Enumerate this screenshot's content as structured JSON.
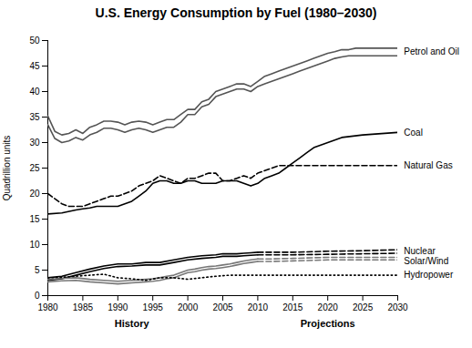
{
  "chart_data": {
    "type": "line",
    "title": "U.S. Energy Consumption by Fuel (1980–2030)",
    "ylabel": "Quadrillion units",
    "xlim": [
      1980,
      2030
    ],
    "ylim": [
      0,
      50
    ],
    "xticks": [
      1980,
      1985,
      1990,
      1995,
      2000,
      2005,
      2010,
      2015,
      2020,
      2025,
      2030
    ],
    "yticks": [
      0,
      5,
      10,
      15,
      20,
      25,
      30,
      35,
      40,
      45,
      50
    ],
    "grid": false,
    "series": [
      {
        "color": "#555555",
        "line_style": "solid",
        "x": [
          1980,
          1981,
          1982,
          1983,
          1984,
          1985,
          1986,
          1987,
          1988,
          1989,
          1990,
          1991,
          1992,
          1993,
          1994,
          1995,
          1996,
          1997,
          1998,
          1999,
          2000,
          2001,
          2002,
          2003,
          2004,
          2005,
          2006,
          2007,
          2008,
          2009,
          2010,
          2011,
          2012,
          2013,
          2014,
          2015,
          2016,
          2017,
          2018,
          2019,
          2020,
          2021,
          2022,
          2023,
          2024,
          2025,
          2026,
          2027,
          2028,
          2029,
          2030
        ],
        "values": [
          35.2,
          32.2,
          31.5,
          31.8,
          32.5,
          31.8,
          33.0,
          33.5,
          34.2,
          34.2,
          34.0,
          33.5,
          34.0,
          34.2,
          34.0,
          33.5,
          34.0,
          34.5,
          34.5,
          35.5,
          36.5,
          36.5,
          38.0,
          38.5,
          40.0,
          40.5,
          41.0,
          41.5,
          41.5,
          41.0,
          42.0,
          43.0,
          43.5,
          44.0,
          44.5,
          45.0,
          45.5,
          46.0,
          46.5,
          47.0,
          47.5,
          47.8,
          48.2,
          48.2,
          48.5,
          48.5,
          48.5,
          48.5,
          48.5,
          48.5,
          48.5
        ]
      },
      {
        "color": "#555555",
        "line_style": "solid",
        "x": [
          1980,
          1981,
          1982,
          1983,
          1984,
          1985,
          1986,
          1987,
          1988,
          1989,
          1990,
          1991,
          1992,
          1993,
          1994,
          1995,
          1996,
          1997,
          1998,
          1999,
          2000,
          2001,
          2002,
          2003,
          2004,
          2005,
          2006,
          2007,
          2008,
          2009,
          2010,
          2011,
          2012,
          2013,
          2014,
          2015,
          2016,
          2017,
          2018,
          2019,
          2020,
          2021,
          2022,
          2023,
          2024,
          2025,
          2026,
          2027,
          2028,
          2029,
          2030
        ],
        "values": [
          33.5,
          30.8,
          30.0,
          30.3,
          31.0,
          30.5,
          31.5,
          32.0,
          32.8,
          32.8,
          32.5,
          32.0,
          32.5,
          32.8,
          32.5,
          32.0,
          32.5,
          33.0,
          33.0,
          34.0,
          35.5,
          35.5,
          37.0,
          37.5,
          39.0,
          39.5,
          40.0,
          40.5,
          40.5,
          40.0,
          41.0,
          41.5,
          42.0,
          42.5,
          43.0,
          43.5,
          44.0,
          44.5,
          45.0,
          45.5,
          46.0,
          46.5,
          46.8,
          47.0,
          47.0,
          47.0,
          47.0,
          47.0,
          47.0,
          47.0,
          47.0
        ]
      },
      {
        "color": "black",
        "line_style": "solid",
        "x": [
          1980,
          1982,
          1984,
          1985,
          1986,
          1987,
          1988,
          1989,
          1990,
          1991,
          1992,
          1993,
          1994,
          1995,
          1996,
          1997,
          1998,
          1999,
          2000,
          2001,
          2002,
          2003,
          2004,
          2005,
          2006,
          2007,
          2008,
          2009,
          2010,
          2011,
          2012,
          2013,
          2014,
          2015,
          2016,
          2017,
          2018,
          2019,
          2020,
          2021,
          2022,
          2025,
          2030
        ],
        "values": [
          16.0,
          16.2,
          16.8,
          17.0,
          17.2,
          17.5,
          17.5,
          17.5,
          17.5,
          18.0,
          18.5,
          19.5,
          20.5,
          22.0,
          22.5,
          22.5,
          22.0,
          22.0,
          22.5,
          22.5,
          22.0,
          22.0,
          22.0,
          22.5,
          22.5,
          22.5,
          22.0,
          21.5,
          22.0,
          23.0,
          23.5,
          24.0,
          25.0,
          26.0,
          27.0,
          28.0,
          29.0,
          29.5,
          30.0,
          30.5,
          31.0,
          31.5,
          32.0
        ]
      },
      {
        "color": "black",
        "line_style": "dashed",
        "x": [
          1980,
          1981,
          1982,
          1983,
          1984,
          1985,
          1986,
          1987,
          1988,
          1989,
          1990,
          1991,
          1992,
          1993,
          1994,
          1995,
          1996,
          1997,
          1998,
          1999,
          2000,
          2001,
          2002,
          2003,
          2004,
          2005,
          2006,
          2007,
          2008,
          2009,
          2010,
          2011,
          2012,
          2013,
          2014,
          2015,
          2016,
          2017,
          2018,
          2019,
          2020,
          2025,
          2030
        ],
        "values": [
          20.0,
          19.0,
          18.0,
          17.5,
          17.5,
          17.5,
          18.0,
          18.5,
          19.0,
          19.5,
          19.5,
          20.0,
          20.5,
          21.5,
          22.0,
          22.5,
          23.5,
          23.0,
          22.5,
          22.0,
          23.0,
          23.0,
          23.5,
          24.0,
          24.0,
          22.5,
          22.5,
          23.0,
          23.5,
          23.0,
          24.0,
          24.5,
          25.0,
          25.5,
          25.5,
          25.5,
          25.5,
          25.5,
          25.5,
          25.5,
          25.5,
          25.5,
          25.5
        ]
      },
      {
        "color": "black",
        "line_style": "solid",
        "x": [
          1980,
          1982,
          1984,
          1986,
          1988,
          1990,
          1992,
          1994,
          1996,
          1998,
          2000,
          2002,
          2004,
          2005,
          2006,
          2007,
          2008,
          2009,
          2010
        ],
        "values": [
          3.5,
          3.8,
          4.5,
          5.2,
          5.8,
          6.2,
          6.2,
          6.5,
          6.5,
          7.0,
          7.5,
          7.8,
          8.0,
          8.2,
          8.2,
          8.2,
          8.3,
          8.4,
          8.5
        ]
      },
      {
        "color": "black",
        "line_style": "dashed",
        "x": [
          2010,
          2012,
          2015,
          2020,
          2025,
          2030
        ],
        "values": [
          8.5,
          8.5,
          8.5,
          8.7,
          8.8,
          9.0
        ]
      },
      {
        "color": "black",
        "line_style": "solid",
        "x": [
          1980,
          1982,
          1984,
          1986,
          1988,
          1990,
          1992,
          1994,
          1996,
          1998,
          2000,
          2002,
          2004,
          2005,
          2006,
          2007,
          2008,
          2009,
          2010
        ],
        "values": [
          3.0,
          3.3,
          4.0,
          4.7,
          5.3,
          5.7,
          5.8,
          6.0,
          6.0,
          6.5,
          7.0,
          7.3,
          7.5,
          7.7,
          7.7,
          7.7,
          7.8,
          7.9,
          8.0
        ]
      },
      {
        "color": "black",
        "line_style": "dashed",
        "x": [
          2010,
          2012,
          2015,
          2020,
          2025,
          2030
        ],
        "values": [
          8.0,
          8.0,
          8.0,
          8.1,
          8.2,
          8.3
        ]
      },
      {
        "color": "#777777",
        "line_style": "solid",
        "x": [
          1980,
          1982,
          1984,
          1986,
          1988,
          1990,
          1992,
          1994,
          1995,
          1996,
          1997,
          1998,
          1999,
          2000,
          2001,
          2002,
          2003,
          2004,
          2005,
          2006,
          2007,
          2008,
          2009,
          2010
        ],
        "values": [
          3.2,
          3.4,
          3.5,
          3.2,
          3.0,
          2.8,
          3.0,
          3.2,
          3.3,
          3.5,
          3.8,
          4.0,
          4.5,
          5.0,
          5.2,
          5.5,
          5.7,
          5.8,
          6.0,
          6.2,
          6.5,
          6.8,
          7.0,
          7.2
        ]
      },
      {
        "color": "#777777",
        "line_style": "dashed",
        "x": [
          2010,
          2012,
          2015,
          2020,
          2025,
          2030
        ],
        "values": [
          7.2,
          7.2,
          7.3,
          7.5,
          7.5,
          7.5
        ]
      },
      {
        "color": "#777777",
        "line_style": "solid",
        "x": [
          1980,
          1982,
          1984,
          1986,
          1988,
          1990,
          1992,
          1994,
          1995,
          1996,
          1997,
          1998,
          1999,
          2000,
          2001,
          2002,
          2003,
          2004,
          2005,
          2006,
          2007,
          2008,
          2009,
          2010
        ],
        "values": [
          2.7,
          2.9,
          3.0,
          2.7,
          2.5,
          2.3,
          2.5,
          2.7,
          2.8,
          3.0,
          3.3,
          3.5,
          4.0,
          4.5,
          4.7,
          5.0,
          5.2,
          5.3,
          5.5,
          5.7,
          6.0,
          6.3,
          6.5,
          6.7
        ]
      },
      {
        "color": "#777777",
        "line_style": "dashed",
        "x": [
          2010,
          2012,
          2015,
          2020,
          2025,
          2030
        ],
        "values": [
          6.7,
          6.7,
          6.8,
          7.0,
          7.0,
          7.0
        ]
      },
      {
        "color": "black",
        "line_style": "dotted",
        "x": [
          1980,
          1982,
          1984,
          1986,
          1988,
          1990,
          1992,
          1994,
          1996,
          1998,
          2000,
          2002,
          2004,
          2006,
          2008,
          2010,
          2012,
          2015,
          2020,
          2025,
          2030
        ],
        "values": [
          3.5,
          3.6,
          3.8,
          4.0,
          4.2,
          3.5,
          3.3,
          3.0,
          3.5,
          3.5,
          3.2,
          3.5,
          3.8,
          4.0,
          4.0,
          4.0,
          4.0,
          4.0,
          4.0,
          4.0,
          4.0
        ]
      }
    ],
    "annotations": [
      {
        "text": "Petrol and Oil",
        "x": 2030.5,
        "y": 47.8
      },
      {
        "text": "Coal",
        "x": 2030.5,
        "y": 32.0
      },
      {
        "text": "Natural Gas",
        "x": 2030.5,
        "y": 25.5
      },
      {
        "text": "Nuclear",
        "x": 2030.5,
        "y": 8.7
      },
      {
        "text": "Solar/Wind",
        "x": 2030.5,
        "y": 7.3
      },
      {
        "text": "Hydropower",
        "x": 2030.5,
        "y": 4.0
      }
    ],
    "axis_notes": [
      {
        "text": "History",
        "x": 1992
      },
      {
        "text": "Projections",
        "x": 2020
      }
    ]
  }
}
